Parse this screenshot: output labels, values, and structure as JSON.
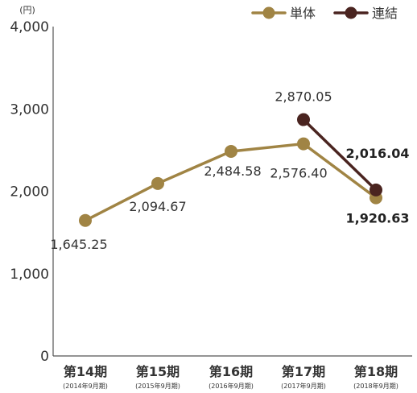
{
  "chart_data": {
    "type": "line",
    "title": "",
    "xlabel": "",
    "ylabel": "",
    "unit_label": "(円)",
    "ylim": [
      0,
      4000
    ],
    "yticks": [
      0,
      1000,
      2000,
      3000,
      4000
    ],
    "ytick_labels": [
      "0",
      "1,000",
      "2,000",
      "3,000",
      "4,000"
    ],
    "grid": false,
    "legend_position": "top-right",
    "categories": [
      "第14期",
      "第15期",
      "第16期",
      "第17期",
      "第18期"
    ],
    "category_subs": [
      "(2014年9月期)",
      "(2015年9月期)",
      "(2016年9月期)",
      "(2017年9月期)",
      "(2018年9月期)"
    ],
    "series": [
      {
        "name": "単体",
        "color": "#A08444",
        "values": [
          1645.25,
          2094.67,
          2484.58,
          2576.4,
          1920.63
        ],
        "labels": [
          "1,645.25",
          "2,094.67",
          "2,484.58",
          "2,576.40",
          "1,920.63"
        ]
      },
      {
        "name": "連結",
        "color": "#4A2420",
        "values": [
          null,
          null,
          null,
          2870.05,
          2016.04
        ],
        "labels": [
          "",
          "",
          "",
          "2,870.05",
          "2,016.04"
        ]
      }
    ]
  },
  "colors": {
    "axis": "#555555",
    "text": "#333333"
  }
}
